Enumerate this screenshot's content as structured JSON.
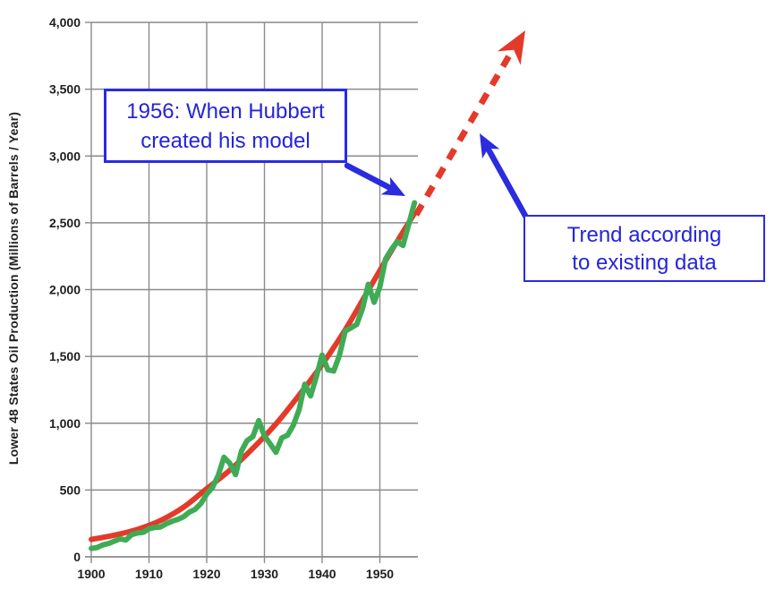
{
  "chart_data": {
    "type": "line",
    "title": "",
    "xlabel": "",
    "ylabel": "Lower 48 States Oil Production (Millions of Barrels / Year)",
    "xlim": [
      1900,
      1956.6
    ],
    "ylim": [
      0,
      4000
    ],
    "x_ticks": [
      1900,
      1910,
      1920,
      1930,
      1940,
      1950
    ],
    "y_ticks": [
      0,
      500,
      1000,
      1500,
      2000,
      2500,
      3000,
      3500,
      4000
    ],
    "grid": true,
    "legend": "none",
    "series": [
      {
        "name": "actual-oil-production",
        "color_key": "green",
        "x_start": 1900,
        "x_step": 1,
        "values": [
          63,
          70,
          89,
          100,
          117,
          135,
          126,
          166,
          178,
          183,
          210,
          220,
          223,
          248,
          266,
          281,
          300,
          335,
          356,
          400,
          470,
          520,
          610,
          745,
          700,
          615,
          790,
          870,
          900,
          1020,
          905,
          845,
          782,
          890,
          910,
          985,
          1100,
          1292,
          1204,
          1350,
          1510,
          1400,
          1390,
          1510,
          1690,
          1714,
          1740,
          1860,
          2040,
          1905,
          2020,
          2230,
          2300,
          2360,
          2330,
          2490,
          2650
        ]
      },
      {
        "name": "exponential-trend-fit",
        "color_key": "red",
        "points": [
          [
            1900,
            130
          ],
          [
            1904,
            162
          ],
          [
            1908,
            206
          ],
          [
            1912,
            272
          ],
          [
            1916,
            372
          ],
          [
            1920,
            510
          ],
          [
            1924,
            648
          ],
          [
            1928,
            812
          ],
          [
            1932,
            995
          ],
          [
            1936,
            1210
          ],
          [
            1940,
            1440
          ],
          [
            1944,
            1700
          ],
          [
            1948,
            1995
          ],
          [
            1952,
            2290
          ],
          [
            1956,
            2570
          ]
        ]
      }
    ],
    "extrapolation": {
      "color_key": "red",
      "style": "dashed-with-arrow",
      "description": "Exponential trend extended beyond 1956 toward upper right with arrowhead"
    }
  },
  "annotations": {
    "hubbert_box": {
      "line1": "1956: When Hubbert",
      "line2": "created his model"
    },
    "trend_box": {
      "line1": "Trend according",
      "line2": "to existing data"
    }
  },
  "colors": {
    "green": "#3fac55",
    "red": "#e33a2a",
    "blue": "#2b2bdf",
    "annotation_text": "#2424dc",
    "grid": "#8a8a8a",
    "axis_text": "#1e1e1e",
    "background": "#ffffff"
  }
}
